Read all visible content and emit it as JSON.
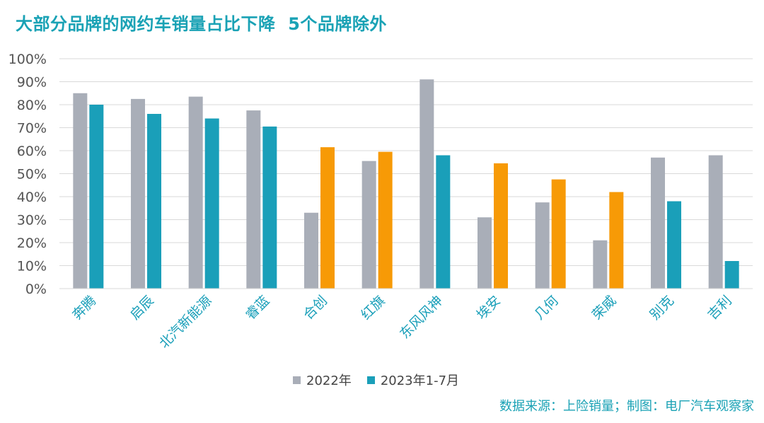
{
  "chart_data": {
    "type": "bar",
    "title": "大部分品牌的网约车销量占比下降  5个品牌除外",
    "categories": [
      "奔腾",
      "启辰",
      "北汽新能源",
      "睿蓝",
      "合创",
      "红旗",
      "东风风神",
      "埃安",
      "几何",
      "荣威",
      "别克",
      "吉利"
    ],
    "series": [
      {
        "name": "2022年",
        "color": "#a9aeb8",
        "values": [
          85,
          82.5,
          83.5,
          77.5,
          33,
          55.5,
          91,
          31,
          37.5,
          21,
          57,
          58
        ]
      },
      {
        "name": "2023年1-7月",
        "color": "#1a9fb9",
        "highlight_color": "#f79a06",
        "values": [
          80,
          76,
          74,
          70.5,
          61.5,
          59.5,
          58,
          54.5,
          47.5,
          42,
          38,
          12
        ],
        "highlighted": [
          false,
          false,
          false,
          false,
          true,
          true,
          false,
          true,
          true,
          true,
          false,
          false
        ]
      }
    ],
    "ylim": [
      0,
      100
    ],
    "yticks": [
      0,
      10,
      20,
      30,
      40,
      50,
      60,
      70,
      80,
      90,
      100
    ],
    "ytick_labels": [
      "0%",
      "10%",
      "20%",
      "30%",
      "40%",
      "50%",
      "60%",
      "70%",
      "80%",
      "90%",
      "100%"
    ],
    "grid": true,
    "legend_position": "bottom"
  },
  "source_note": "数据来源：上险销量；制图：电厂汽车观察家"
}
